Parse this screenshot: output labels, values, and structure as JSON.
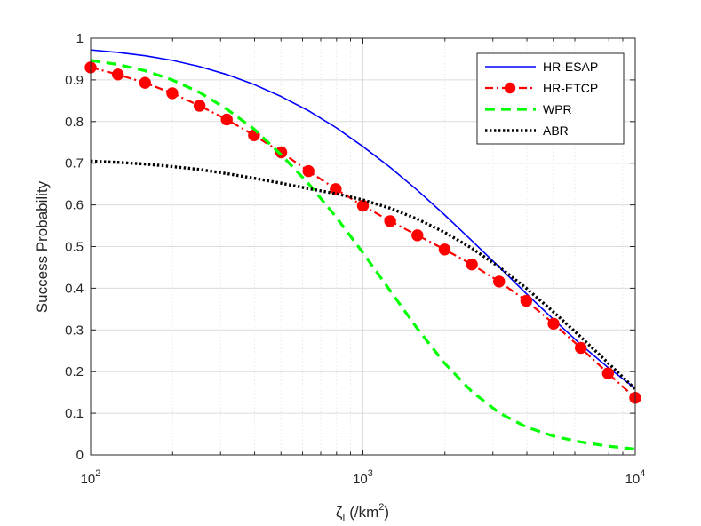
{
  "chart_data": {
    "type": "line",
    "x_scale": "log",
    "xlim": [
      100,
      10000
    ],
    "ylim": [
      0,
      1
    ],
    "x_ticks": [
      100,
      1000,
      10000
    ],
    "x_tick_labels": [
      {
        "base": "10",
        "exp": "2"
      },
      {
        "base": "10",
        "exp": "3"
      },
      {
        "base": "10",
        "exp": "4"
      }
    ],
    "y_ticks": [
      0,
      0.1,
      0.2,
      0.3,
      0.4,
      0.5,
      0.6,
      0.7,
      0.8,
      0.9,
      1
    ],
    "y_tick_labels": [
      "0",
      "0.1",
      "0.2",
      "0.3",
      "0.4",
      "0.5",
      "0.6",
      "0.7",
      "0.8",
      "0.9",
      "1"
    ],
    "xlabel": {
      "symbol": "ζ",
      "subscript": "I",
      "unit_prefix": " (/km",
      "unit_exp": "2",
      "unit_suffix": ")"
    },
    "ylabel": "Success Probability",
    "grid": true,
    "legend_position": "top-right",
    "x": [
      100,
      125.9,
      158.5,
      199.5,
      251.2,
      316.2,
      398.1,
      501.2,
      631,
      794.3,
      1000,
      1258.9,
      1584.9,
      1995.3,
      2511.9,
      3162.3,
      3981.1,
      5011.9,
      6309.6,
      7943.3,
      10000
    ],
    "series": [
      {
        "name": "HR-ESAP",
        "color": "#0000ff",
        "style": "solid",
        "marker": "none",
        "values": [
          0.972,
          0.966,
          0.958,
          0.947,
          0.932,
          0.913,
          0.889,
          0.86,
          0.826,
          0.786,
          0.74,
          0.69,
          0.635,
          0.576,
          0.514,
          0.451,
          0.387,
          0.325,
          0.265,
          0.21,
          0.16
        ]
      },
      {
        "name": "HR-ETCP",
        "color": "#ff0000",
        "style": "dashdot",
        "marker": "circle",
        "values": [
          0.93,
          0.913,
          0.893,
          0.868,
          0.838,
          0.805,
          0.767,
          0.726,
          0.681,
          0.638,
          0.598,
          0.561,
          0.527,
          0.493,
          0.457,
          0.416,
          0.37,
          0.315,
          0.257,
          0.196,
          0.137
        ]
      },
      {
        "name": "WPR",
        "color": "#00ff00",
        "style": "dashed",
        "marker": "none",
        "values": [
          0.947,
          0.937,
          0.922,
          0.9,
          0.87,
          0.83,
          0.782,
          0.72,
          0.651,
          0.572,
          0.485,
          0.394,
          0.303,
          0.22,
          0.152,
          0.101,
          0.067,
          0.045,
          0.031,
          0.021,
          0.014
        ]
      },
      {
        "name": "ABR",
        "color": "#000000",
        "style": "dotted",
        "marker": "none",
        "values": [
          0.705,
          0.702,
          0.698,
          0.692,
          0.685,
          0.675,
          0.664,
          0.652,
          0.639,
          0.627,
          0.612,
          0.592,
          0.566,
          0.534,
          0.496,
          0.451,
          0.4,
          0.343,
          0.283,
          0.221,
          0.158
        ]
      }
    ]
  }
}
